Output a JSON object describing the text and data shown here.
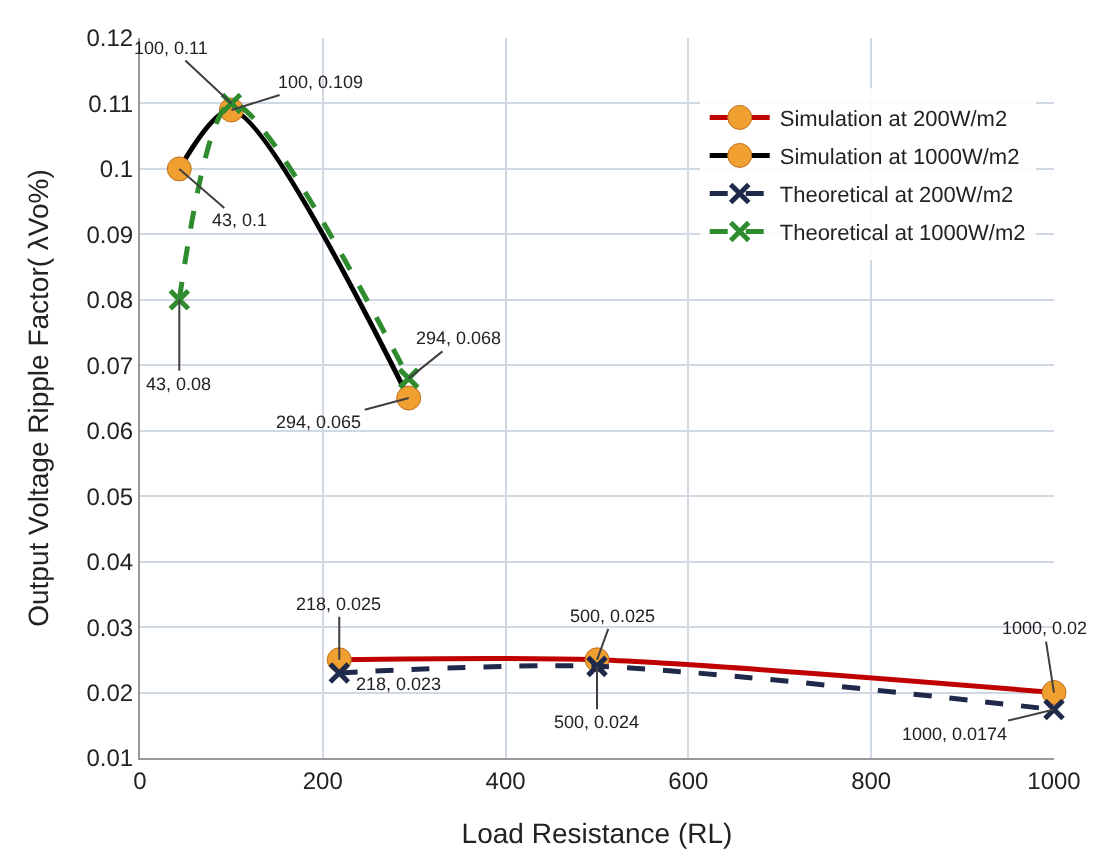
{
  "chart_data": {
    "type": "line",
    "xlabel": "Load Resistance (RL)",
    "ylabel": "Output Voltage Ripple Factor( λVo%)",
    "xlim": [
      0,
      1000
    ],
    "xticks": [
      0,
      200,
      400,
      600,
      800,
      1000
    ],
    "ylim": [
      0.01,
      0.12
    ],
    "yticks": [
      0.01,
      0.02,
      0.03,
      0.04,
      0.05,
      0.06,
      0.07,
      0.08,
      0.09,
      0.1,
      0.11,
      0.12
    ],
    "grid": true,
    "legend": "top right",
    "series": [
      {
        "name": "Simulation at 200W/m2",
        "color": "#c00000",
        "line_style": "solid",
        "marker": "circle",
        "colors": [
          "#f0a030",
          "#f0a030",
          "#f0a030"
        ],
        "x": [
          218,
          500,
          1000
        ],
        "values": [
          0.025,
          0.025,
          0.02
        ]
      },
      {
        "name": "Simulation at 1000W/m2",
        "color": "#000000",
        "line_style": "solid",
        "marker": "circle",
        "colors": [
          "#f0a030",
          "#f0a030",
          "#f0a030"
        ],
        "x": [
          43,
          100,
          294
        ],
        "values": [
          0.1,
          0.109,
          0.065
        ]
      },
      {
        "name": "Theoretical at 200W/m2",
        "color": "#1f2a4a",
        "line_style": "dashed",
        "marker": "cross",
        "x": [
          218,
          500,
          1000
        ],
        "values": [
          0.023,
          0.024,
          0.0174
        ]
      },
      {
        "name": "Theoretical at 1000W/m2",
        "color": "#2e8b2e",
        "line_style": "dashed",
        "marker": "cross",
        "x": [
          43,
          100,
          294
        ],
        "values": [
          0.08,
          0.11,
          0.068
        ]
      }
    ],
    "annotations": [
      {
        "text": "100, 0.11",
        "x": 100,
        "y": 0.11
      },
      {
        "text": "100, 0.109",
        "x": 100,
        "y": 0.109
      },
      {
        "text": "43, 0.1",
        "x": 43,
        "y": 0.1
      },
      {
        "text": "43, 0.08",
        "x": 43,
        "y": 0.08
      },
      {
        "text": "294, 0.068",
        "x": 294,
        "y": 0.068
      },
      {
        "text": "294, 0.065",
        "x": 294,
        "y": 0.065
      },
      {
        "text": "218, 0.025",
        "x": 218,
        "y": 0.025
      },
      {
        "text": "218, 0.023",
        "x": 218,
        "y": 0.023
      },
      {
        "text": "500, 0.025",
        "x": 500,
        "y": 0.025
      },
      {
        "text": "500, 0.024",
        "x": 500,
        "y": 0.024
      },
      {
        "text": "1000, 0.02",
        "x": 1000,
        "y": 0.02
      },
      {
        "text": "1000, 0.0174",
        "x": 1000,
        "y": 0.0174
      }
    ]
  }
}
